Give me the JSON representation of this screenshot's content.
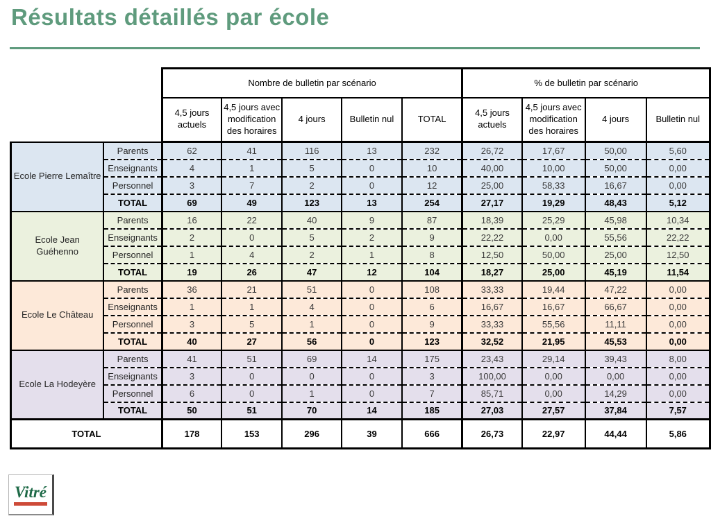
{
  "slide": {
    "title": "Résultats détaillés par école",
    "accent_color": "#5f9b7d"
  },
  "table": {
    "group_headers": [
      "Nombre de bulletin par scénario",
      "% de bulletin par scénario"
    ],
    "column_headers": [
      "4,5 jours actuels",
      "4,5 jours avec modification des horaires",
      "4 jours",
      "Bulletin nul",
      "TOTAL",
      "4,5 jours actuels",
      "4,5 jours avec modification des horaires",
      "4 jours",
      "Bulletin nul"
    ],
    "schools": [
      {
        "name": "Ecole Pierre Lemaître",
        "color": "#DCE6F1",
        "rows": [
          {
            "label": "Parents",
            "bold": false,
            "values": [
              "62",
              "41",
              "116",
              "13",
              "232",
              "26,72",
              "17,67",
              "50,00",
              "5,60"
            ]
          },
          {
            "label": "Enseignants",
            "bold": false,
            "values": [
              "4",
              "1",
              "5",
              "0",
              "10",
              "40,00",
              "10,00",
              "50,00",
              "0,00"
            ]
          },
          {
            "label": "Personnel",
            "bold": false,
            "values": [
              "3",
              "7",
              "2",
              "0",
              "12",
              "25,00",
              "58,33",
              "16,67",
              "0,00"
            ]
          },
          {
            "label": "TOTAL",
            "bold": true,
            "values": [
              "69",
              "49",
              "123",
              "13",
              "254",
              "27,17",
              "19,29",
              "48,43",
              "5,12"
            ]
          }
        ]
      },
      {
        "name": "Ecole Jean Guéhenno",
        "color": "#EBF1DE",
        "rows": [
          {
            "label": "Parents",
            "bold": false,
            "values": [
              "16",
              "22",
              "40",
              "9",
              "87",
              "18,39",
              "25,29",
              "45,98",
              "10,34"
            ]
          },
          {
            "label": "Enseignants",
            "bold": false,
            "values": [
              "2",
              "0",
              "5",
              "2",
              "9",
              "22,22",
              "0,00",
              "55,56",
              "22,22"
            ]
          },
          {
            "label": "Personnel",
            "bold": false,
            "values": [
              "1",
              "4",
              "2",
              "1",
              "8",
              "12,50",
              "50,00",
              "25,00",
              "12,50"
            ]
          },
          {
            "label": "TOTAL",
            "bold": true,
            "values": [
              "19",
              "26",
              "47",
              "12",
              "104",
              "18,27",
              "25,00",
              "45,19",
              "11,54"
            ]
          }
        ]
      },
      {
        "name": "Ecole Le Château",
        "color": "#FDE9D9",
        "rows": [
          {
            "label": "Parents",
            "bold": false,
            "values": [
              "36",
              "21",
              "51",
              "0",
              "108",
              "33,33",
              "19,44",
              "47,22",
              "0,00"
            ]
          },
          {
            "label": "Enseignants",
            "bold": false,
            "values": [
              "1",
              "1",
              "4",
              "0",
              "6",
              "16,67",
              "16,67",
              "66,67",
              "0,00"
            ]
          },
          {
            "label": "Personnel",
            "bold": false,
            "values": [
              "3",
              "5",
              "1",
              "0",
              "9",
              "33,33",
              "55,56",
              "11,11",
              "0,00"
            ]
          },
          {
            "label": "TOTAL",
            "bold": true,
            "values": [
              "40",
              "27",
              "56",
              "0",
              "123",
              "32,52",
              "21,95",
              "45,53",
              "0,00"
            ]
          }
        ]
      },
      {
        "name": "Ecole La Hodeyère",
        "color": "#E4DFEC",
        "rows": [
          {
            "label": "Parents",
            "bold": false,
            "values": [
              "41",
              "51",
              "69",
              "14",
              "175",
              "23,43",
              "29,14",
              "39,43",
              "8,00"
            ]
          },
          {
            "label": "Enseignants",
            "bold": false,
            "values": [
              "3",
              "0",
              "0",
              "0",
              "3",
              "100,00",
              "0,00",
              "0,00",
              "0,00"
            ]
          },
          {
            "label": "Personnel",
            "bold": false,
            "values": [
              "6",
              "0",
              "1",
              "0",
              "7",
              "85,71",
              "0,00",
              "14,29",
              "0,00"
            ]
          },
          {
            "label": "TOTAL",
            "bold": true,
            "values": [
              "50",
              "51",
              "70",
              "14",
              "185",
              "27,03",
              "27,57",
              "37,84",
              "7,57"
            ]
          }
        ]
      }
    ],
    "grand_total": {
      "label": "TOTAL",
      "values": [
        "178",
        "153",
        "296",
        "39",
        "666",
        "26,73",
        "22,97",
        "44,44",
        "5,86"
      ]
    }
  },
  "logo": {
    "text": "Vitré",
    "text_color": "#1e6a47",
    "underline_color": "#cd4a38"
  }
}
